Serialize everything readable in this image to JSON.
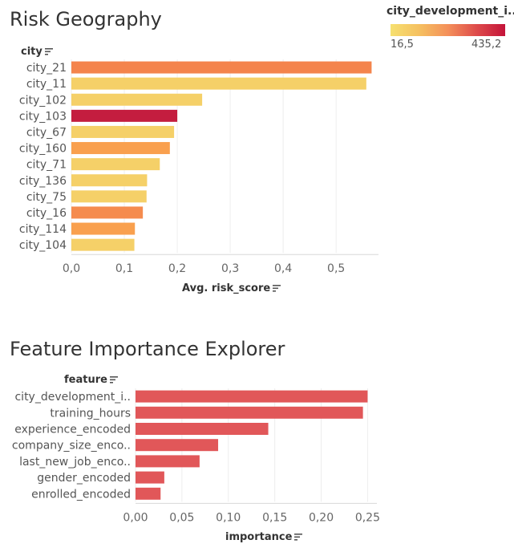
{
  "legend": {
    "title": "city_development_i..",
    "min_label": "16,5",
    "max_label": "435,2",
    "colors": [
      "#f6e070",
      "#f4905a",
      "#c4143a"
    ]
  },
  "chart_data": [
    {
      "type": "bar",
      "orientation": "horizontal",
      "title": "Risk Geography",
      "ylabel": "city",
      "xlabel": "Avg. risk_score",
      "xlim": [
        0,
        0.58
      ],
      "xticks": [
        0,
        0.1,
        0.2,
        0.3,
        0.4,
        0.5
      ],
      "xtick_labels": [
        "0,0",
        "0,1",
        "0,2",
        "0,3",
        "0,4",
        "0,5"
      ],
      "categories": [
        "city_21",
        "city_11",
        "city_102",
        "city_103",
        "city_67",
        "city_160",
        "city_71",
        "city_136",
        "city_75",
        "city_16",
        "city_114",
        "city_104"
      ],
      "values": [
        0.567,
        0.557,
        0.247,
        0.2,
        0.194,
        0.186,
        0.167,
        0.143,
        0.142,
        0.135,
        0.12,
        0.119
      ],
      "colors": [
        "#f4844c",
        "#f5d068",
        "#f5d068",
        "#c41d3f",
        "#f5d068",
        "#f9a04e",
        "#f5d068",
        "#f5d068",
        "#f5d068",
        "#f58b4e",
        "#f9a04e",
        "#f5d068"
      ],
      "color_legend": "city_development_i.."
    },
    {
      "type": "bar",
      "orientation": "horizontal",
      "title": "Feature Importance Explorer",
      "ylabel": "feature",
      "xlabel": "importance",
      "xlim": [
        0,
        0.26
      ],
      "xticks": [
        0,
        0.05,
        0.1,
        0.15,
        0.2,
        0.25
      ],
      "xtick_labels": [
        "0,00",
        "0,05",
        "0,10",
        "0,15",
        "0,20",
        "0,25"
      ],
      "categories": [
        "city_development_i..",
        "training_hours",
        "experience_encoded",
        "company_size_enco..",
        "last_new_job_enco..",
        "gender_encoded",
        "enrolled_encoded"
      ],
      "values": [
        0.25,
        0.245,
        0.143,
        0.089,
        0.069,
        0.031,
        0.027
      ],
      "colors": [
        "#e15759",
        "#e15759",
        "#e15759",
        "#e15759",
        "#e15759",
        "#e15759",
        "#e15759"
      ]
    }
  ]
}
